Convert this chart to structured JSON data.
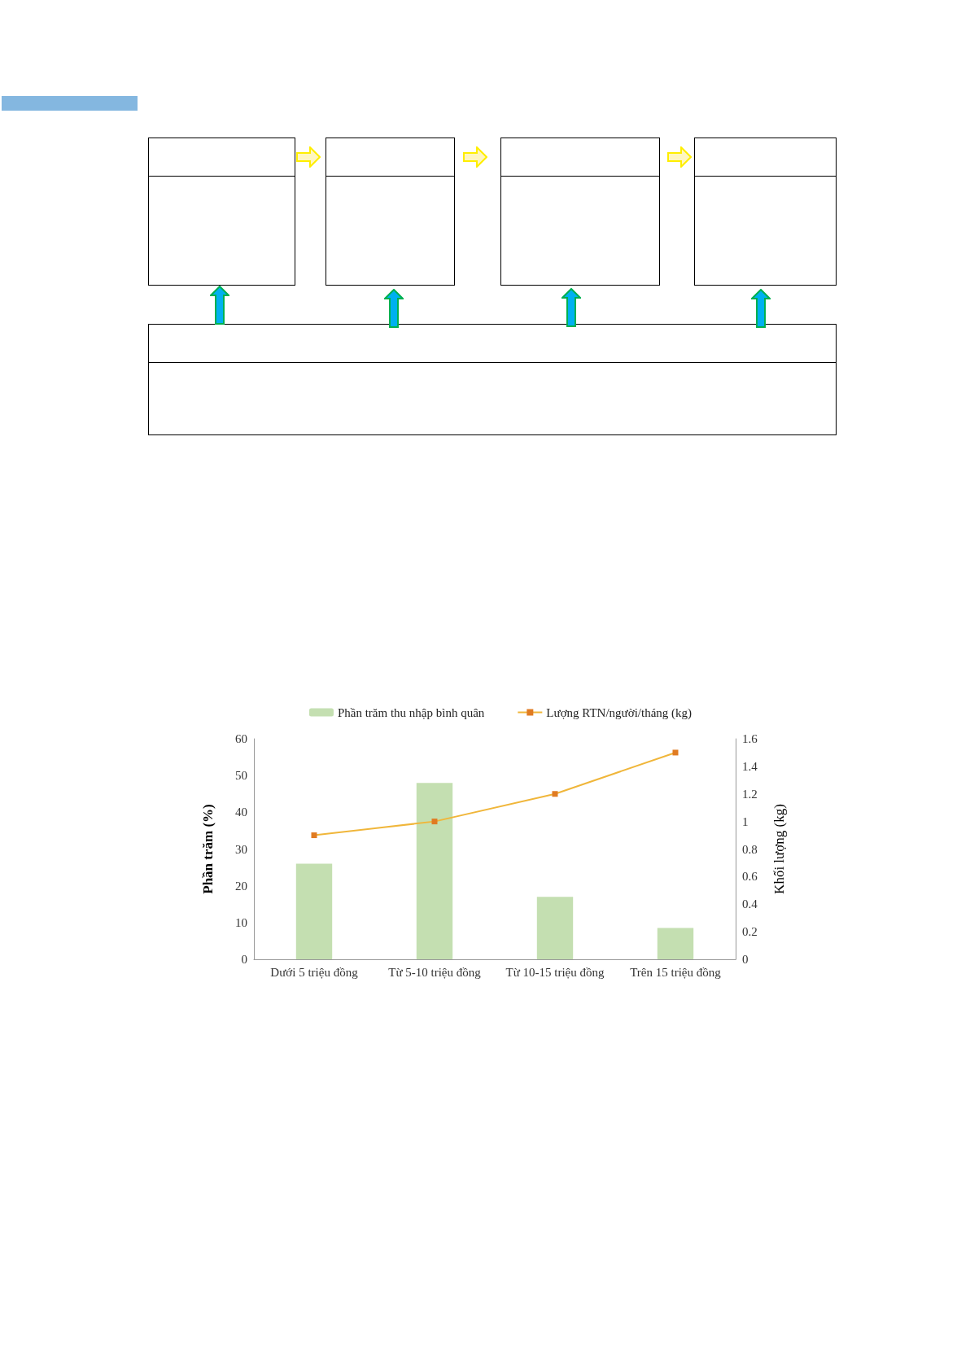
{
  "chart_data": {
    "type": "bar",
    "categories": [
      "Dưới 5 triệu đồng",
      "Từ 5-10 triệu đồng",
      "Từ 10-15 triệu đồng",
      "Trên 15 triệu đồng"
    ],
    "series": [
      {
        "name": "Phần trăm thu nhập bình quân",
        "color": "#c4dfb1",
        "values": [
          26,
          48,
          17,
          8.5
        ]
      },
      {
        "name": "Lượng RTN/người/tháng (kg)",
        "type": "line",
        "axis": "y2",
        "color": "#f0b63a",
        "values": [
          0.9,
          1.0,
          1.2,
          1.5
        ]
      }
    ],
    "ylabel": "Phần trăm (%)",
    "y2label": "Khối lượng (kg)",
    "ylim": [
      0,
      60
    ],
    "yticks": [
      0,
      10,
      20,
      30,
      40,
      50,
      60
    ],
    "y2lim": [
      0,
      1.6
    ],
    "y2ticks": [
      0,
      0.2,
      0.4,
      0.6,
      0.8,
      1,
      1.2,
      1.4,
      1.6
    ],
    "grid": false,
    "legend": "top",
    "marker": "square"
  }
}
